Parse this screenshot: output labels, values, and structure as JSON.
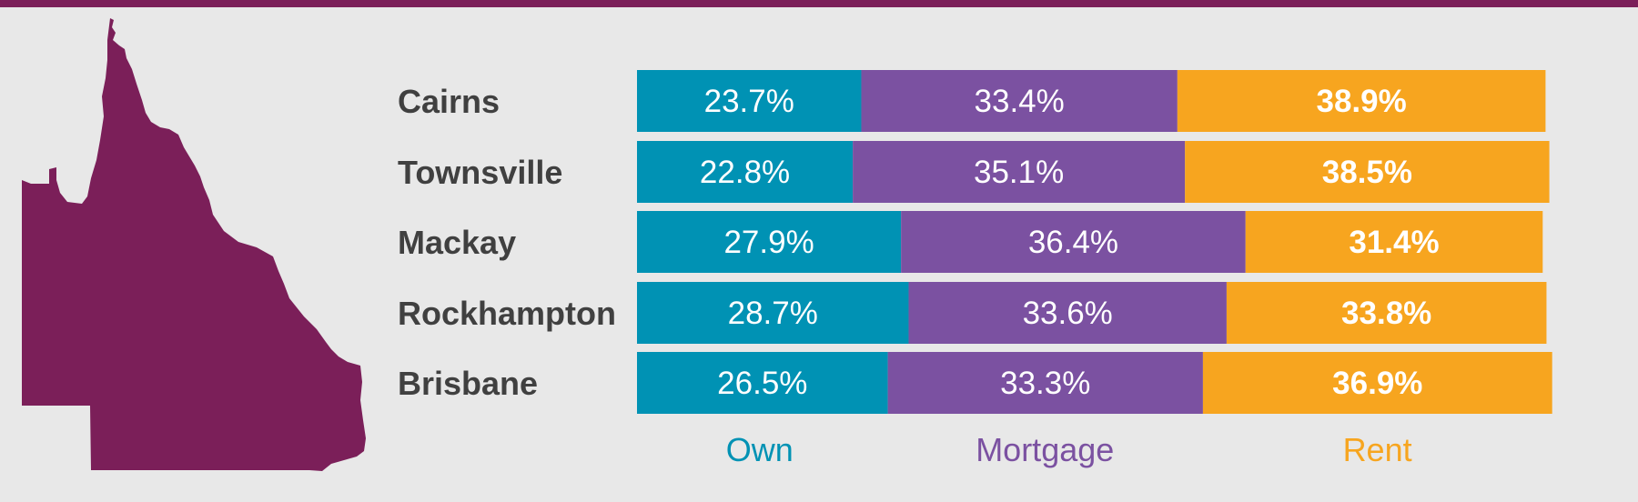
{
  "colors": {
    "top_bar": "#7b1f59",
    "map": "#7b1f59",
    "own": "#0092b4",
    "mortgage": "#7b51a1",
    "rent": "#f7a51f",
    "city_text": "#404040",
    "segment_text": "#ffffff"
  },
  "icons": {
    "map": "queensland-map-icon"
  },
  "chart_data": {
    "type": "bar",
    "orientation": "horizontal",
    "stacked": true,
    "categories": [
      "Cairns",
      "Townsville",
      "Mackay",
      "Rockhampton",
      "Brisbane"
    ],
    "series": [
      {
        "name": "Own",
        "values": [
          23.7,
          22.8,
          27.9,
          28.7,
          26.5
        ],
        "labels": [
          "23.7%",
          "22.8%",
          "27.9%",
          "28.7%",
          "26.5%"
        ],
        "color": "#0092b4"
      },
      {
        "name": "Mortgage",
        "values": [
          33.4,
          35.1,
          36.4,
          33.6,
          33.3
        ],
        "labels": [
          "33.4%",
          "35.1%",
          "36.4%",
          "33.6%",
          "33.3%"
        ],
        "color": "#7b51a1"
      },
      {
        "name": "Rent",
        "values": [
          38.9,
          38.5,
          31.4,
          33.8,
          36.9
        ],
        "labels": [
          "38.9%",
          "38.5%",
          "31.4%",
          "33.8%",
          "36.9%"
        ],
        "color": "#f7a51f"
      }
    ],
    "legend_position": "bottom",
    "grid": false,
    "title": "",
    "xlabel": "",
    "ylabel": ""
  }
}
